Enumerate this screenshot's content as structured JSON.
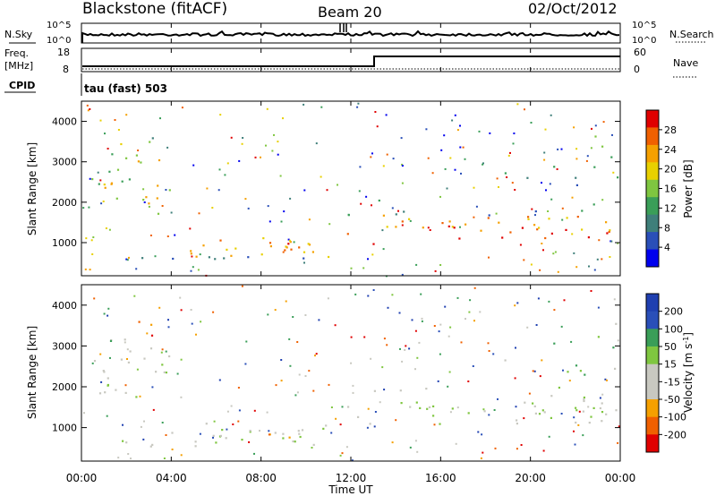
{
  "header": {
    "title": "Blackstone (fitACF)",
    "beam": "Beam 20",
    "date": "02/Oct/2012"
  },
  "sky_panel": {
    "left_label": "N.Sky",
    "right_label": "N.Search",
    "ticks": [
      "10^5",
      "10^0"
    ]
  },
  "freq_panel": {
    "left_label_1": "Freq.",
    "left_label_2": "[MHz]",
    "left_ticks": [
      "18",
      "8"
    ],
    "right_label": "Nave",
    "right_ticks": [
      "60",
      "0"
    ],
    "cpid_label": "CPID",
    "cpid_text": "tau (fast) 503"
  },
  "colors": {
    "power_scale": [
      "#0000ee",
      "#2a4fb8",
      "#3f7f7a",
      "#3a9e58",
      "#7fc640",
      "#e8d000",
      "#f5a000",
      "#f06000",
      "#e00000"
    ],
    "velocity_scale": [
      "#e00000",
      "#f06000",
      "#f5a000",
      "#c8c8c0",
      "#c8c8c0",
      "#7fc640",
      "#3a9e58",
      "#2a4fb8",
      "#1f3fb0"
    ]
  },
  "chart_data": [
    {
      "type": "heatmap",
      "name": "power",
      "ylabel": "Slant Range [km]",
      "ylim": [
        180,
        4500
      ],
      "y_ticks": [
        "4000",
        "3000",
        "2000",
        "1000"
      ],
      "colorbar_label": "Power [dB]",
      "colorbar_ticks": [
        "28",
        "24",
        "20",
        "16",
        "12",
        "8",
        "4"
      ],
      "x_ticks": [
        "00:00",
        "04:00",
        "08:00",
        "12:00",
        "16:00",
        "20:00",
        "00:00"
      ]
    },
    {
      "type": "heatmap",
      "name": "velocity",
      "ylabel": "Slant Range [km]",
      "ylim": [
        180,
        4500
      ],
      "y_ticks": [
        "4000",
        "3000",
        "2000",
        "1000"
      ],
      "colorbar_label": "Velocity [m s",
      "colorbar_unit_sup": "-1",
      "colorbar_ticks": [
        "200",
        "100",
        "50",
        "15",
        "-15",
        "-50",
        "-100",
        "-200"
      ],
      "x_ticks": [
        "00:00",
        "04:00",
        "08:00",
        "12:00",
        "16:00",
        "20:00",
        "00:00"
      ],
      "xlabel": "Time UT"
    }
  ]
}
